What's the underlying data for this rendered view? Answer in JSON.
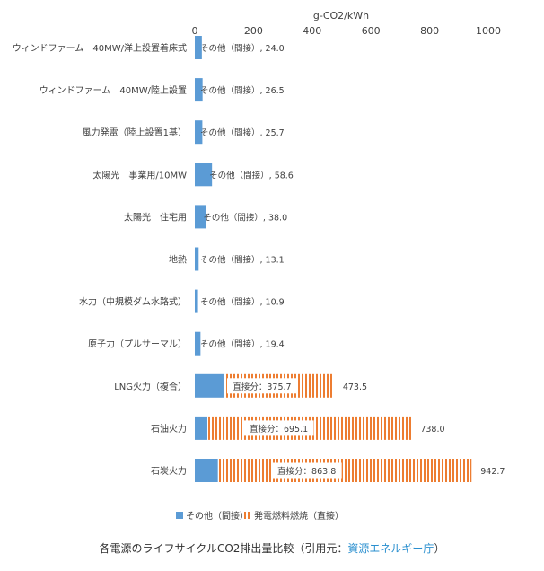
{
  "chart_data": {
    "type": "bar",
    "orientation": "horizontal",
    "stacked": true,
    "xlabel": "g-CO2/kWh",
    "xlim": [
      0,
      1000
    ],
    "ticks": [
      0,
      200,
      400,
      600,
      800,
      1000
    ],
    "categories": [
      "ウィンドファーム　40MW/洋上設置着床式",
      "ウィンドファーム　40MW/陸上設置",
      "風力発電（陸上設置1基）",
      "太陽光　事業用/10MW",
      "太陽光　住宅用",
      "地熱",
      "水力（中規模ダム水路式）",
      "原子力（プルサーマル）",
      "LNG火力（複合）",
      "石油火力",
      "石炭火力"
    ],
    "series": [
      {
        "name": "その他（間接）",
        "color": "#5b9bd5",
        "pattern": "solid",
        "values": [
          24.0,
          26.5,
          25.7,
          58.6,
          38.0,
          13.1,
          10.9,
          19.4,
          97.8,
          42.9,
          78.9
        ]
      },
      {
        "name": "発電燃料燃焼（直接）",
        "color": "#ed7d31",
        "pattern": "vertical-stripes",
        "values": [
          0,
          0,
          0,
          0,
          0,
          0,
          0,
          0,
          375.7,
          695.1,
          863.8
        ]
      }
    ],
    "data_labels": [
      {
        "indirect": "その他（間接）, 24.0"
      },
      {
        "indirect": "その他（間接）, 26.5"
      },
      {
        "indirect": "その他（間接）, 25.7"
      },
      {
        "indirect": "その他（間接）, 58.6"
      },
      {
        "indirect": "その他（間接）, 38.0"
      },
      {
        "indirect": "その他（間接）, 13.1"
      },
      {
        "indirect": "その他（間接）, 10.9"
      },
      {
        "indirect": "その他（間接）, 19.4"
      },
      {
        "direct": "直接分：375.7",
        "total": "473.5"
      },
      {
        "direct": "直接分：695.1",
        "total": "738.0"
      },
      {
        "direct": "直接分：863.8",
        "total": "942.7"
      }
    ],
    "legend": {
      "position": "bottom-left"
    }
  },
  "caption": {
    "text": "各電源のライフサイクルCO2排出量比較（引用元：",
    "link": "資源エネルギー庁",
    "end": "）"
  }
}
